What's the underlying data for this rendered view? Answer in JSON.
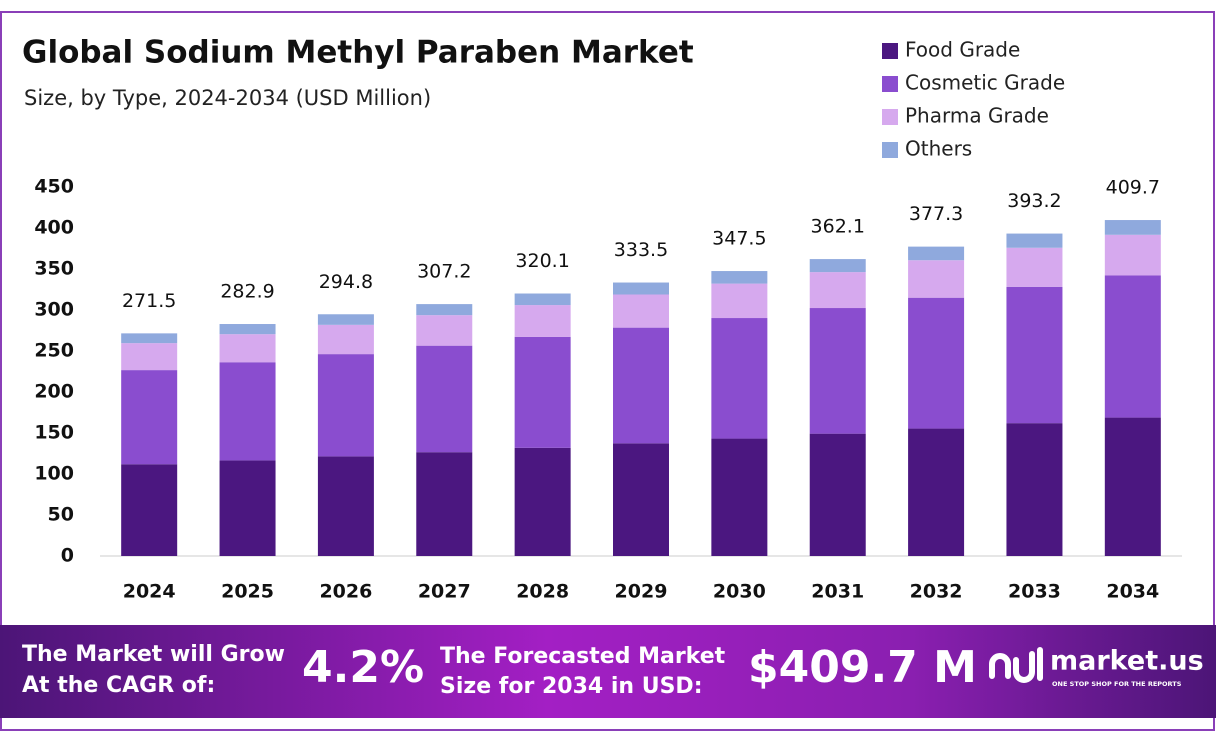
{
  "chart_data": {
    "type": "stacked-bar",
    "title": "Global Sodium Methyl Paraben Market",
    "subtitle": "Size, by Type, 2024-2034 (USD Million)",
    "categories": [
      "2024",
      "2025",
      "2026",
      "2027",
      "2028",
      "2029",
      "2030",
      "2031",
      "2032",
      "2033",
      "2034"
    ],
    "series": [
      {
        "name": "Food Grade",
        "color": "#4b1780",
        "values": [
          111.9,
          116.6,
          121.5,
          126.6,
          131.9,
          137.4,
          143.2,
          149.2,
          155.4,
          162.0,
          168.8
        ]
      },
      {
        "name": "Cosmetic Grade",
        "color": "#8a4dcf",
        "values": [
          114.8,
          119.7,
          124.7,
          129.9,
          135.4,
          141.1,
          147.0,
          153.2,
          159.6,
          166.3,
          173.3
        ]
      },
      {
        "name": "Pharma Grade",
        "color": "#d6a9ee",
        "values": [
          32.9,
          34.2,
          35.7,
          37.2,
          38.7,
          40.4,
          42.0,
          43.8,
          45.7,
          47.6,
          49.6
        ]
      },
      {
        "name": "Others",
        "color": "#8fa9dd",
        "values": [
          11.9,
          12.4,
          12.9,
          13.5,
          14.1,
          14.6,
          15.3,
          15.9,
          16.6,
          17.3,
          18.0
        ]
      }
    ],
    "totals": [
      271.5,
      282.9,
      294.8,
      307.2,
      320.1,
      333.5,
      347.5,
      362.1,
      377.3,
      393.2,
      409.7
    ],
    "ylim": [
      0,
      450
    ],
    "yticks": [
      0,
      50,
      100,
      150,
      200,
      250,
      300,
      350,
      400,
      450
    ],
    "grid": false,
    "legend": "top-right"
  },
  "footer": {
    "cagr_text": [
      "The Market will Grow",
      "At the CAGR of:"
    ],
    "cagr": "4.2%",
    "forecast_text": [
      "The Forecasted Market",
      "Size for 2034 in USD:"
    ],
    "forecast": "$409.7 M",
    "brand": "market.us",
    "tagline": "ONE STOP SHOP FOR THE REPORTS"
  }
}
